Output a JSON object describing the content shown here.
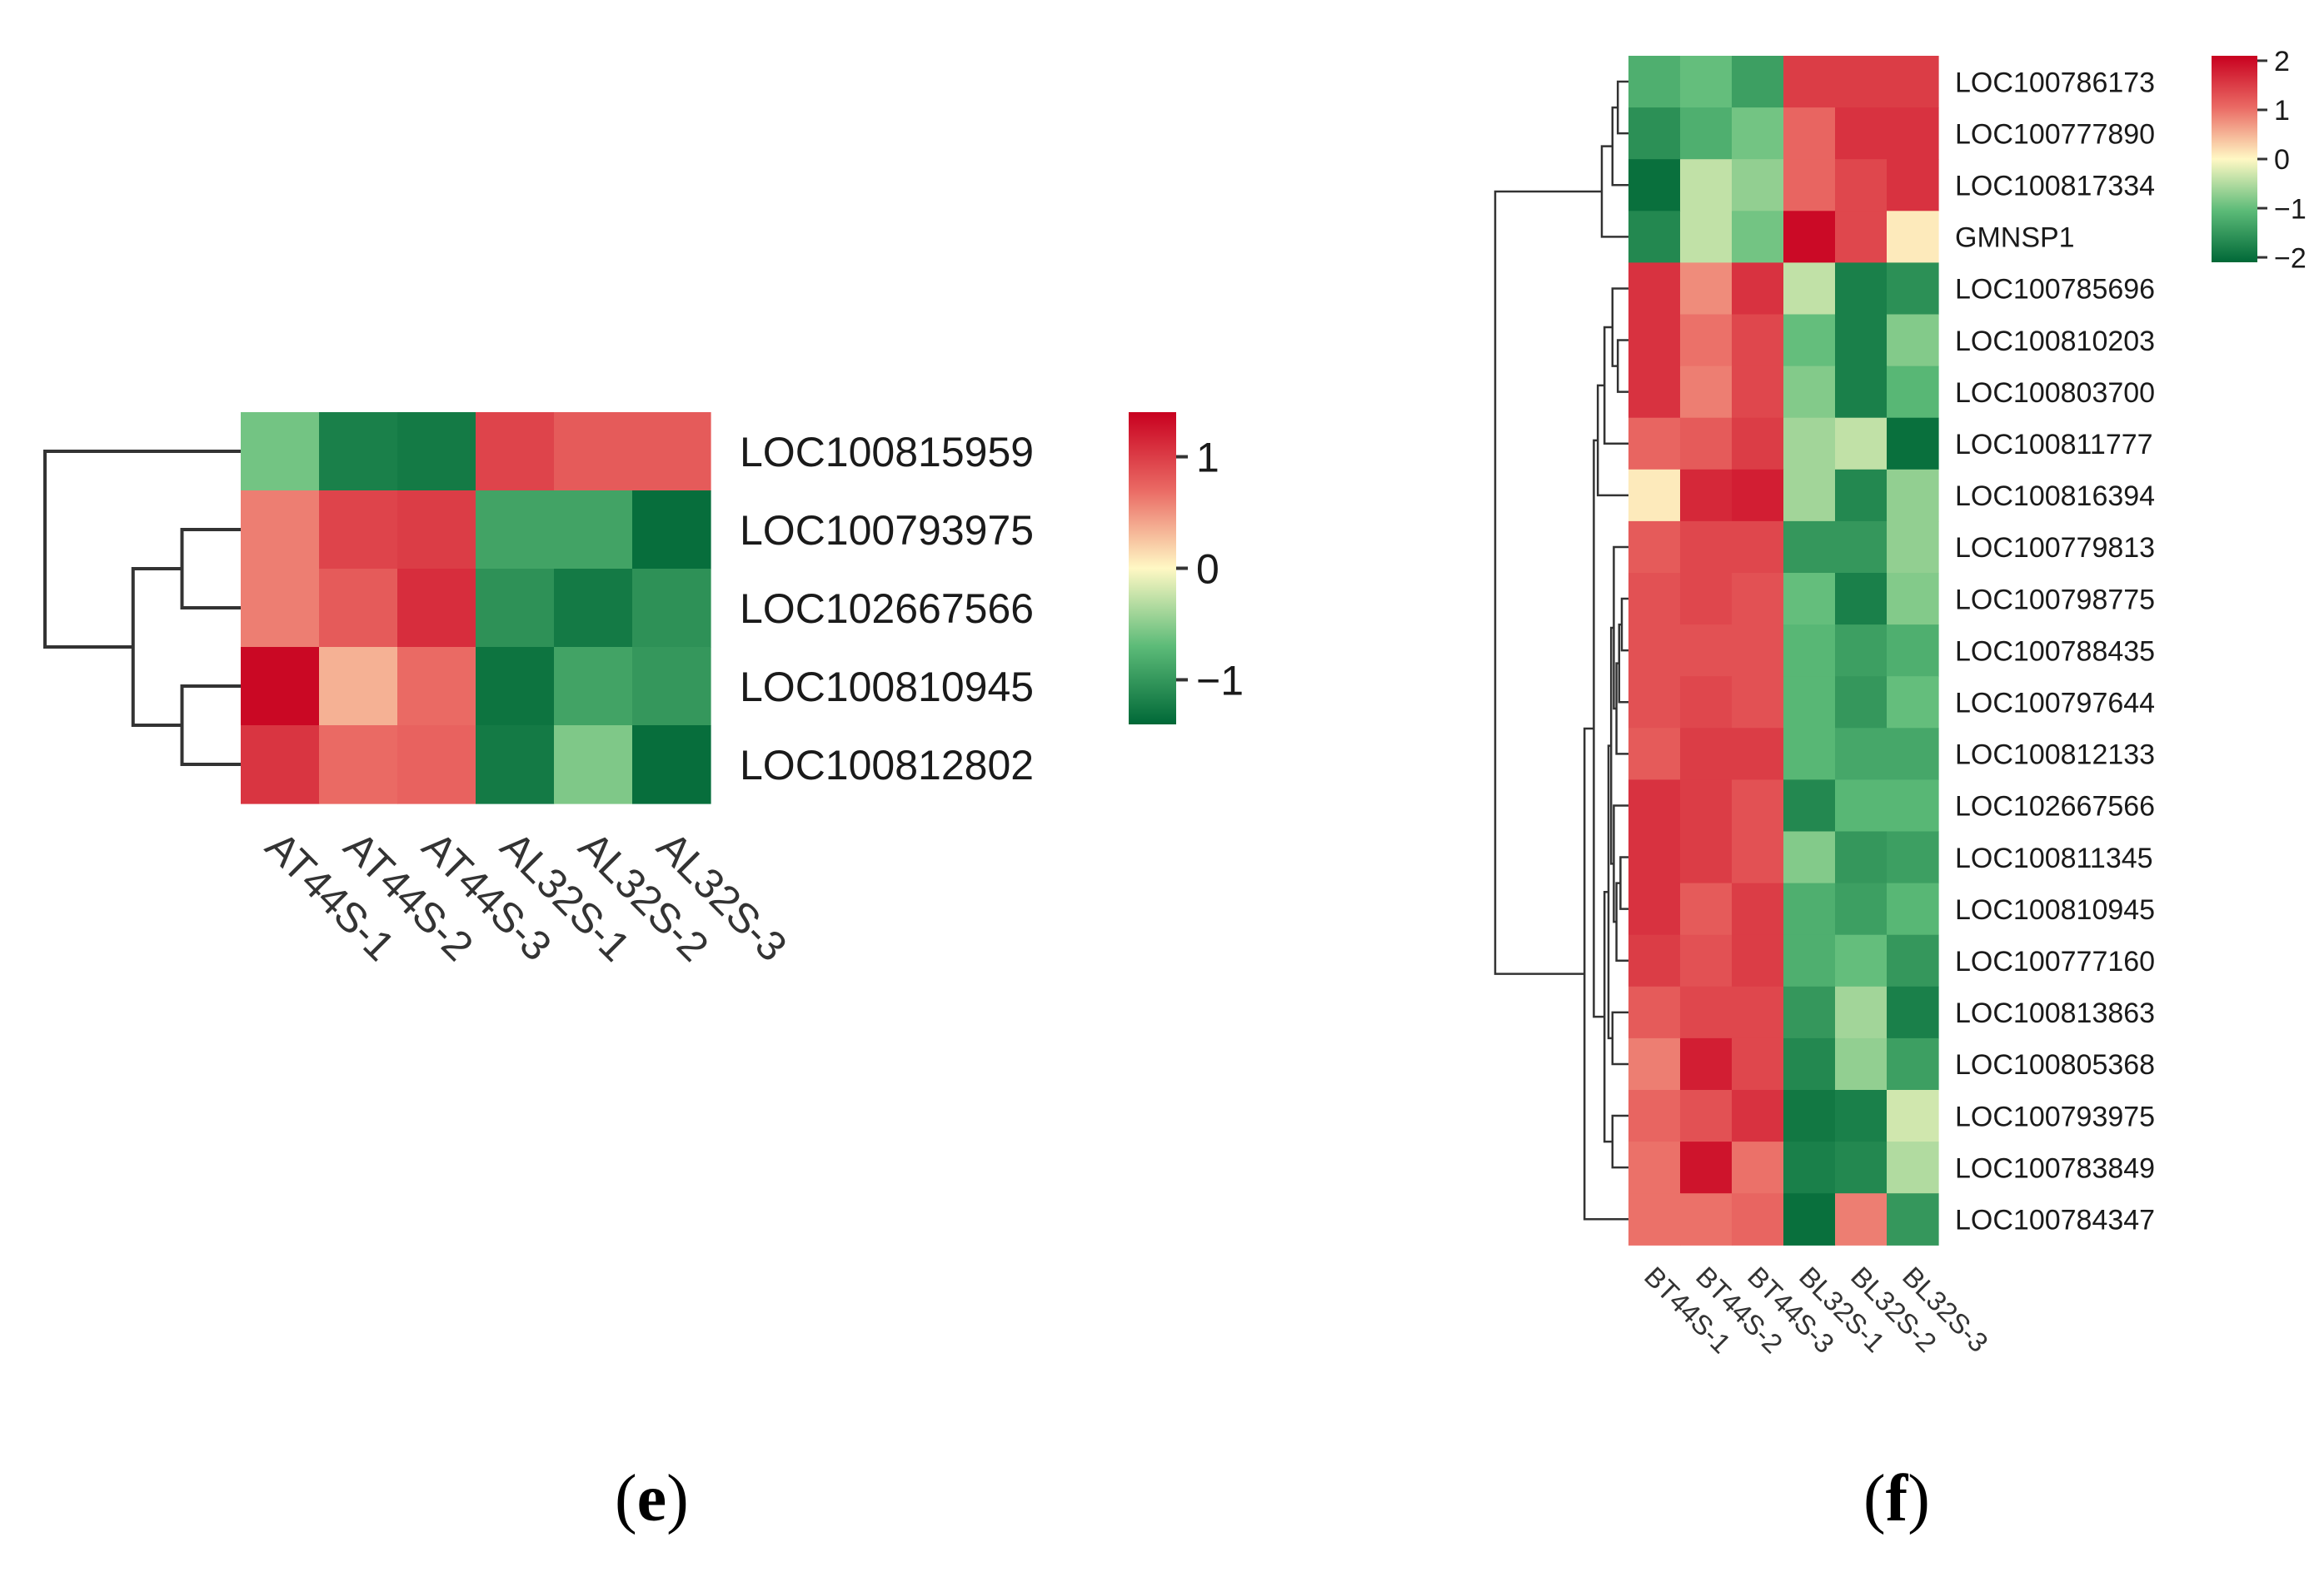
{
  "panels": {
    "e": {
      "label_open": "(",
      "label_letter": "e",
      "label_close": ")"
    },
    "f": {
      "label_open": "(",
      "label_letter": "f",
      "label_close": ")"
    }
  },
  "colors": {
    "high": "#c8001f",
    "mid": "#fff8c4",
    "low": "#006837"
  },
  "chart_data": [
    {
      "type": "heatmap",
      "panel": "e",
      "title": "",
      "columns": [
        "AT44S-1",
        "AT44S-2",
        "AT44S-3",
        "AL32S-1",
        "AL32S-2",
        "AL32S-3"
      ],
      "rows": [
        "LOC100815959",
        "LOC100793975",
        "LOC102667566",
        "LOC100810945",
        "LOC100812802"
      ],
      "values": [
        [
          -0.6,
          -1.2,
          -1.25,
          0.95,
          0.8,
          0.8
        ],
        [
          0.6,
          0.95,
          1.0,
          -0.9,
          -0.9,
          -1.35
        ],
        [
          0.6,
          0.8,
          1.1,
          -1.05,
          -1.25,
          -1.05
        ],
        [
          1.35,
          0.35,
          0.7,
          -1.3,
          -0.9,
          -1.0
        ],
        [
          1.05,
          0.7,
          0.75,
          -1.25,
          -0.55,
          -1.35
        ]
      ],
      "color_range": [
        -1.4,
        1.4
      ],
      "colorbar_ticks": [
        1,
        0,
        -1
      ],
      "colorbar_tick_labels": [
        "1",
        "0",
        "−1"
      ],
      "dendrogram": {
        "leaves": [
          0,
          1,
          2,
          3,
          4
        ],
        "merges": [
          [
            1,
            2,
            0.3
          ],
          [
            3,
            4,
            0.3
          ],
          [
            5,
            6,
            0.55
          ],
          [
            0,
            7,
            1.0
          ]
        ]
      }
    },
    {
      "type": "heatmap",
      "panel": "f",
      "title": "",
      "columns": [
        "BT44S-1",
        "BT44S-2",
        "BT44S-3",
        "BL32S-1",
        "BL32S-2",
        "BL32S-3"
      ],
      "rows": [
        "LOC100786173",
        "LOC100777890",
        "LOC100817334",
        "GMNSP1",
        "LOC100785696",
        "LOC100810203",
        "LOC100803700",
        "LOC100811777",
        "LOC100816394",
        "LOC100779813",
        "LOC100798775",
        "LOC100788435",
        "LOC100797644",
        "LOC100812133",
        "LOC102667566",
        "LOC100811345",
        "LOC100810945",
        "LOC100777160",
        "LOC100813863",
        "LOC100805368",
        "LOC100793975",
        "LOC100783849",
        "LOC100784347"
      ],
      "values": [
        [
          -1.2,
          -1.0,
          -1.4,
          1.5,
          1.5,
          1.5
        ],
        [
          -1.6,
          -1.2,
          -0.9,
          1.1,
          1.6,
          1.6
        ],
        [
          -2.0,
          -0.4,
          -0.7,
          1.1,
          1.4,
          1.6
        ],
        [
          -1.7,
          -0.4,
          -0.9,
          2.0,
          1.4,
          0.1
        ],
        [
          1.6,
          0.8,
          1.6,
          -0.4,
          -1.8,
          -1.6
        ],
        [
          1.6,
          1.0,
          1.4,
          -1.0,
          -1.8,
          -0.8
        ],
        [
          1.6,
          0.9,
          1.4,
          -0.8,
          -1.8,
          -1.1
        ],
        [
          1.1,
          1.2,
          1.5,
          -0.6,
          -0.4,
          -2.0
        ],
        [
          0.1,
          1.7,
          1.8,
          -0.6,
          -1.7,
          -0.7
        ],
        [
          1.2,
          1.4,
          1.4,
          -1.5,
          -1.5,
          -0.7
        ],
        [
          1.3,
          1.4,
          1.3,
          -1.0,
          -1.8,
          -0.8
        ],
        [
          1.3,
          1.3,
          1.3,
          -1.1,
          -1.4,
          -1.2
        ],
        [
          1.3,
          1.4,
          1.3,
          -1.1,
          -1.5,
          -1.0
        ],
        [
          1.2,
          1.5,
          1.5,
          -1.1,
          -1.3,
          -1.3
        ],
        [
          1.6,
          1.5,
          1.3,
          -1.7,
          -1.1,
          -1.1
        ],
        [
          1.6,
          1.5,
          1.3,
          -0.8,
          -1.5,
          -1.4
        ],
        [
          1.6,
          1.2,
          1.5,
          -1.2,
          -1.4,
          -1.1
        ],
        [
          1.5,
          1.3,
          1.5,
          -1.2,
          -1.0,
          -1.5
        ],
        [
          1.2,
          1.4,
          1.4,
          -1.5,
          -0.6,
          -1.8
        ],
        [
          0.9,
          1.8,
          1.4,
          -1.7,
          -0.7,
          -1.4
        ],
        [
          1.1,
          1.3,
          1.6,
          -1.9,
          -1.8,
          -0.3
        ],
        [
          1.0,
          1.9,
          1.0,
          -1.8,
          -1.7,
          -0.5
        ],
        [
          1.0,
          1.0,
          1.1,
          -2.0,
          0.9,
          -1.5
        ]
      ],
      "color_range": [
        -2.1,
        2.1
      ],
      "colorbar_ticks": [
        2,
        1,
        0,
        -1,
        -2
      ],
      "colorbar_tick_labels": [
        "2",
        "1",
        "0",
        "−1",
        "−2"
      ],
      "dendrogram": {
        "leaves": [
          0,
          1,
          2,
          3,
          4,
          5,
          6,
          7,
          8,
          9,
          10,
          11,
          12,
          13,
          14,
          15,
          16,
          17,
          18,
          19,
          20,
          21,
          22
        ],
        "merges": [
          [
            0,
            1,
            0.08
          ],
          [
            23,
            2,
            0.12
          ],
          [
            24,
            3,
            0.2
          ],
          [
            5,
            6,
            0.08
          ],
          [
            4,
            26,
            0.12
          ],
          [
            27,
            7,
            0.18
          ],
          [
            28,
            8,
            0.23
          ],
          [
            10,
            11,
            0.05
          ],
          [
            30,
            12,
            0.07
          ],
          [
            31,
            13,
            0.09
          ],
          [
            9,
            32,
            0.11
          ],
          [
            15,
            16,
            0.06
          ],
          [
            34,
            17,
            0.09
          ],
          [
            14,
            35,
            0.11
          ],
          [
            33,
            36,
            0.13
          ],
          [
            18,
            19,
            0.12
          ],
          [
            37,
            38,
            0.15
          ],
          [
            20,
            21,
            0.12
          ],
          [
            39,
            40,
            0.18
          ],
          [
            29,
            41,
            0.26
          ],
          [
            42,
            22,
            0.33
          ],
          [
            25,
            43,
            1.0
          ]
        ]
      }
    }
  ]
}
